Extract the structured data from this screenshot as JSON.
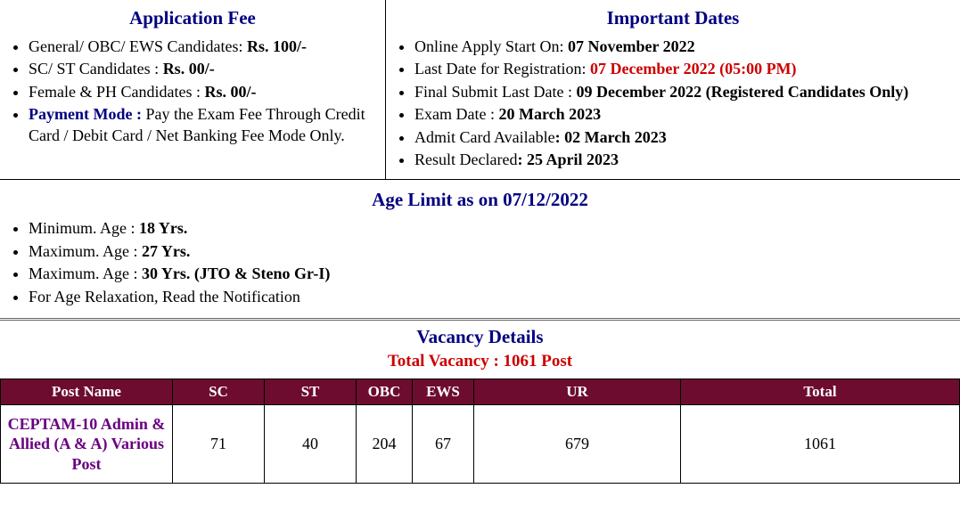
{
  "fee": {
    "title": "Application Fee",
    "items": [
      {
        "prefix": "General/ OBC/ EWS Candidates: ",
        "bold": "Rs. 100/-"
      },
      {
        "prefix": "SC/ ST Candidates : ",
        "bold": "Rs. 00/-"
      },
      {
        "prefix": "Female & PH Candidates : ",
        "bold": "Rs. 00/-"
      }
    ],
    "payment_mode_label": "Payment Mode : ",
    "payment_mode_text": "Pay the Exam Fee Through Credit Card / Debit Card / Net Banking Fee Mode Only."
  },
  "dates": {
    "title": "Important Dates",
    "items": [
      {
        "prefix": "Online Apply Start On:  ",
        "bold": "07 November 2022"
      },
      {
        "prefix": "Last Date for Registration: ",
        "red_bold": "07 December 2022 (05:00 PM)"
      },
      {
        "prefix": "Final Submit Last Date : ",
        "bold": "09 December 2022 (Registered Candidates Only)"
      },
      {
        "prefix": "Exam Date : ",
        "bold": "20 March 2023"
      },
      {
        "prefix": "Admit Card Available",
        "bold": ": 02 March 2023"
      },
      {
        "prefix": "Result Declared",
        "bold": ": 25 April 2023"
      }
    ]
  },
  "age": {
    "title": "Age Limit as on 07/12/2022",
    "items": [
      {
        "prefix": "Minimum. Age : ",
        "bold": "18 Yrs."
      },
      {
        "prefix": "Maximum. Age : ",
        "bold": "27 Yrs."
      },
      {
        "prefix": "Maximum. Age : ",
        "bold": "30 Yrs. (JTO & Steno Gr-I)"
      },
      {
        "prefix": "For Age Relaxation, Read the Notification",
        "bold": ""
      }
    ]
  },
  "vacancy": {
    "title": "Vacancy Details",
    "subtitle": "Total Vacancy : 1061 Post",
    "columns": [
      "Post Name",
      "SC",
      "ST",
      "OBC",
      "EWS",
      "UR",
      "Total"
    ],
    "col_widths": [
      "180px",
      "90px",
      "90px",
      "50px",
      "56px",
      "",
      "300px"
    ],
    "rows": [
      {
        "post": "CEPTAM-10 Admin & Allied (A & A) Various Post",
        "sc": "71",
        "st": "40",
        "obc": "204",
        "ews": "67",
        "ur": "679",
        "total": "1061"
      }
    ]
  }
}
